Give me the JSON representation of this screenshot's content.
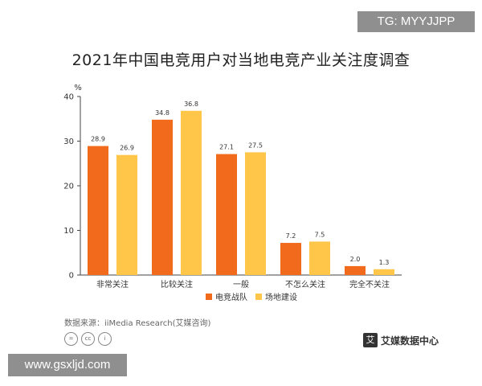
{
  "tag": "TG: MYYJJPP",
  "source": "数据来源：iiMedia Research(艾媒咨询)",
  "brand": "艾媒数据中心",
  "watermark": "www.gsxljd.com",
  "colors": {
    "series1": "#F26B1D",
    "series2": "#FFC64A",
    "axis": "#444444"
  },
  "chart_data": {
    "type": "bar",
    "title": "2021年中国电竞用户对当地电竞产业关注度调查",
    "ylabel": "%",
    "ylim": [
      0,
      40
    ],
    "yticks": [
      0,
      10,
      20,
      30,
      40
    ],
    "grid": false,
    "legend": "bottom",
    "categories": [
      "非常关注",
      "比较关注",
      "一般",
      "不怎么关注",
      "完全不关注"
    ],
    "series": [
      {
        "name": "电竞战队",
        "values": [
          28.9,
          34.8,
          27.1,
          7.2,
          2.0
        ],
        "labels": [
          "28.9",
          "34.8",
          "27.1",
          "7.2",
          "2.0"
        ]
      },
      {
        "name": "场地建设",
        "values": [
          26.9,
          36.8,
          27.5,
          7.5,
          1.3
        ],
        "labels": [
          "26.9",
          "36.8",
          "27.5",
          "7.5",
          "1.3"
        ]
      }
    ]
  }
}
